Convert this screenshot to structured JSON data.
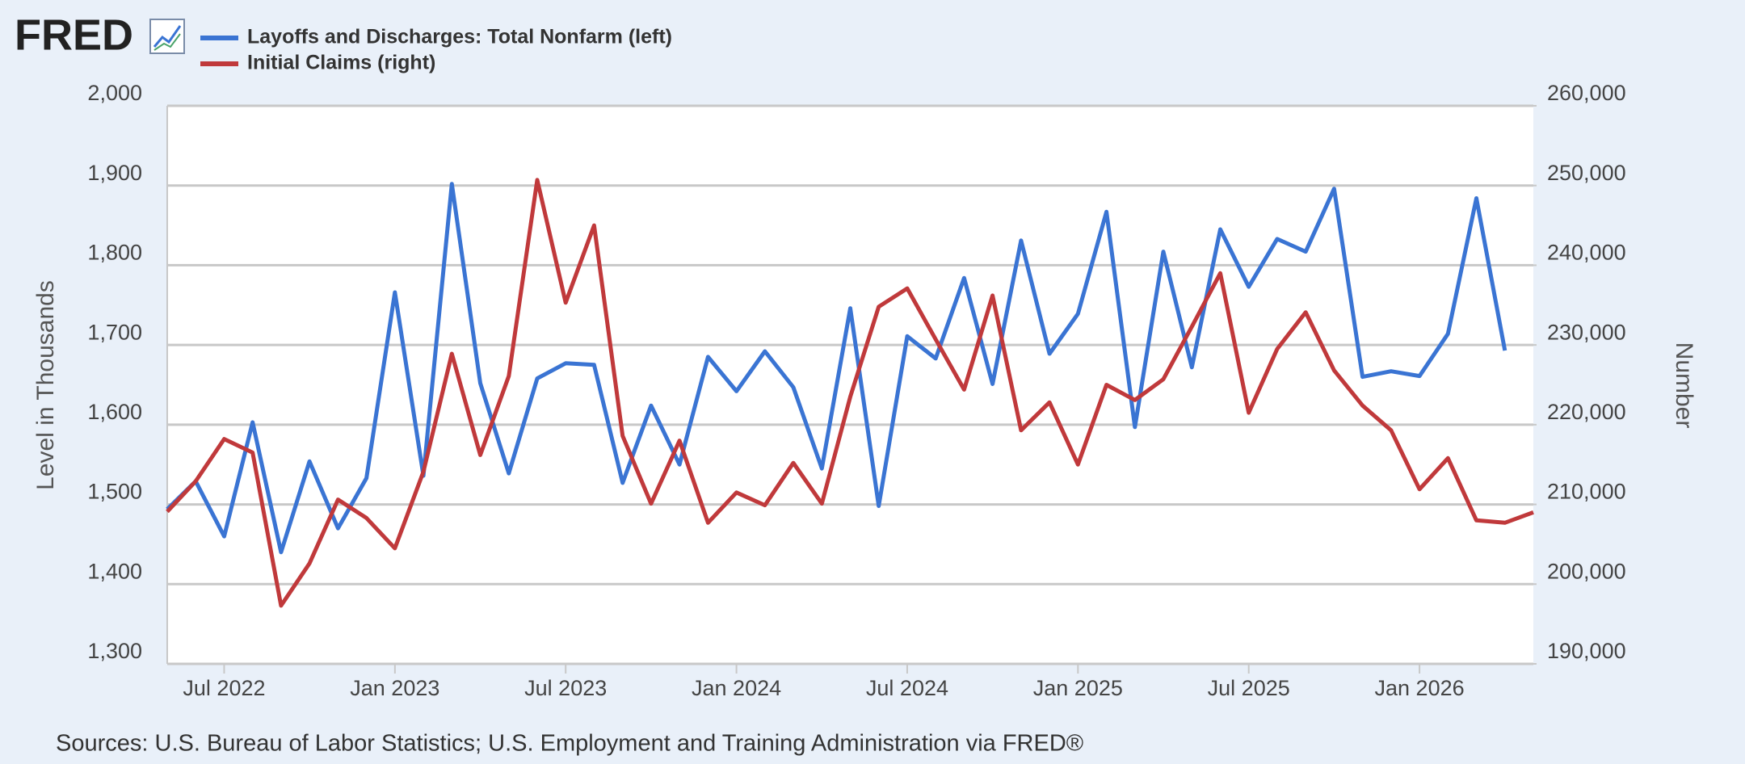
{
  "chart_data": {
    "type": "line",
    "logo": "FRED",
    "y_label": "Level in Thousands",
    "y2_label": "Number",
    "source": "Sources: U.S. Bureau of Labor Statistics; U.S. Employment and Training Administration via FRED®",
    "x": [
      "2022-05",
      "2022-06",
      "2022-07",
      "2022-08",
      "2022-09",
      "2022-10",
      "2022-11",
      "2022-12",
      "2023-01",
      "2023-02",
      "2023-03",
      "2023-04",
      "2023-05",
      "2023-06",
      "2023-07",
      "2023-08",
      "2023-09",
      "2023-10",
      "2023-11",
      "2023-12",
      "2024-01",
      "2024-02",
      "2024-03",
      "2024-04",
      "2024-05",
      "2024-06",
      "2024-07",
      "2024-08",
      "2024-09",
      "2024-10",
      "2024-11",
      "2024-12",
      "2025-01",
      "2025-02",
      "2025-03",
      "2025-04",
      "2025-05",
      "2025-06",
      "2025-07",
      "2025-08",
      "2025-09",
      "2025-10",
      "2025-11",
      "2025-12",
      "2026-01",
      "2026-02",
      "2026-03",
      "2026-04",
      "2026-05"
    ],
    "xlim": [
      "2022-05",
      "2026-05"
    ],
    "xticks": [
      {
        "value": "2022-07",
        "label": "Jul 2022"
      },
      {
        "value": "2023-01",
        "label": "Jan 2023"
      },
      {
        "value": "2023-07",
        "label": "Jul 2023"
      },
      {
        "value": "2024-01",
        "label": "Jan 2024"
      },
      {
        "value": "2024-07",
        "label": "Jul 2024"
      },
      {
        "value": "2025-01",
        "label": "Jan 2025"
      },
      {
        "value": "2025-07",
        "label": "Jul 2025"
      },
      {
        "value": "2026-01",
        "label": "Jan 2026"
      }
    ],
    "ylim": [
      1300,
      2000
    ],
    "yticks": [
      {
        "value": 1300,
        "label": "1,300"
      },
      {
        "value": 1400,
        "label": "1,400"
      },
      {
        "value": 1500,
        "label": "1,500"
      },
      {
        "value": 1600,
        "label": "1,600"
      },
      {
        "value": 1700,
        "label": "1,700"
      },
      {
        "value": 1800,
        "label": "1,800"
      },
      {
        "value": 1900,
        "label": "1,900"
      },
      {
        "value": 2000,
        "label": "2,000"
      }
    ],
    "y2lim": [
      190000,
      260000
    ],
    "y2ticks": [
      {
        "value": 190000,
        "label": "190,000"
      },
      {
        "value": 200000,
        "label": "200,000"
      },
      {
        "value": 210000,
        "label": "210,000"
      },
      {
        "value": 220000,
        "label": "220,000"
      },
      {
        "value": 230000,
        "label": "230,000"
      },
      {
        "value": 240000,
        "label": "240,000"
      },
      {
        "value": 250000,
        "label": "250,000"
      },
      {
        "value": 260000,
        "label": "260,000"
      }
    ],
    "grid": true,
    "series": [
      {
        "name": "Layoffs and Discharges: Total Nonfarm (left)",
        "color": "#3a74d3",
        "axis": "y",
        "values": [
          1494,
          1529,
          1460,
          1603,
          1440,
          1554,
          1470,
          1533,
          1766,
          1536,
          1902,
          1652,
          1539,
          1658,
          1677,
          1675,
          1527,
          1624,
          1550,
          1685,
          1642,
          1692,
          1647,
          1545,
          1746,
          1498,
          1711,
          1683,
          1784,
          1651,
          1831,
          1689,
          1739,
          1867,
          1597,
          1817,
          1672,
          1845,
          1773,
          1833,
          1817,
          1896,
          1660,
          1667,
          1661,
          1714,
          1884,
          1693,
          null
        ]
      },
      {
        "name": "Initial Claims (right)",
        "color": "#c0393b",
        "axis": "y2",
        "values": [
          209100,
          212900,
          218200,
          216500,
          197300,
          202600,
          210600,
          208300,
          204500,
          214100,
          228900,
          216200,
          226100,
          250700,
          235300,
          245000,
          218600,
          210100,
          218000,
          207700,
          211500,
          209900,
          215200,
          210100,
          223500,
          234800,
          237100,
          230700,
          224400,
          236200,
          219300,
          222800,
          215000,
          225000,
          223100,
          225700,
          232300,
          239000,
          221500,
          229500,
          234100,
          226800,
          222400,
          219300,
          211900,
          215800,
          208000,
          207700,
          209000
        ]
      }
    ]
  }
}
